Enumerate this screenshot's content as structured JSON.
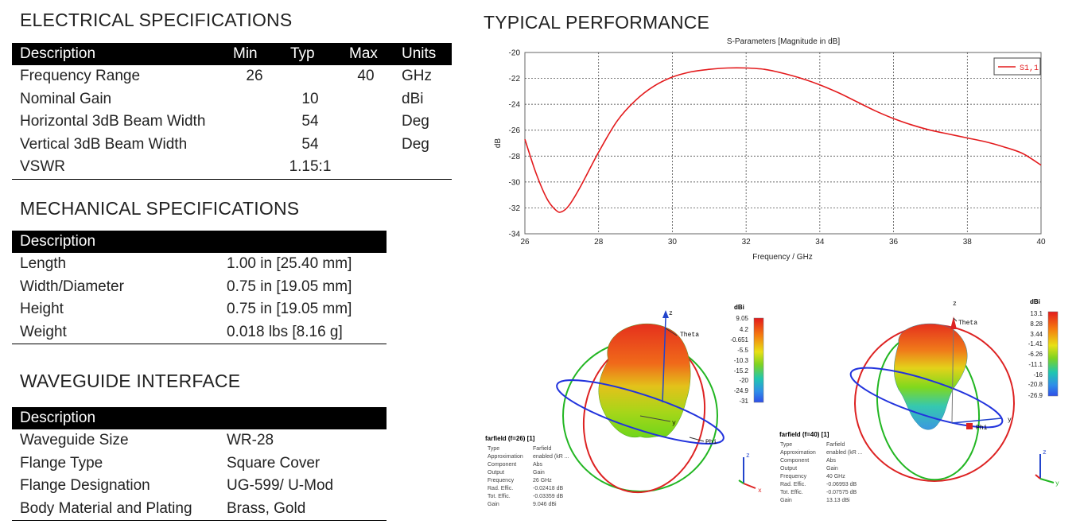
{
  "electrical": {
    "title": "ELECTRICAL SPECIFICATIONS",
    "headers": [
      "Description",
      "Min",
      "Typ",
      "Max",
      "Units"
    ],
    "rows": [
      [
        "Frequency Range",
        "26",
        "",
        "40",
        "GHz"
      ],
      [
        "Nominal Gain",
        "",
        "10",
        "",
        "dBi"
      ],
      [
        "Horizontal 3dB Beam Width",
        "",
        "54",
        "",
        "Deg"
      ],
      [
        "Vertical 3dB Beam Width",
        "",
        "54",
        "",
        "Deg"
      ],
      [
        "VSWR",
        "",
        "1.15:1",
        "",
        ""
      ]
    ]
  },
  "mechanical": {
    "title": "MECHANICAL SPECIFICATIONS",
    "header": "Description",
    "rows": [
      [
        "Length",
        "1.00 in [25.40 mm]"
      ],
      [
        "Width/Diameter",
        "0.75 in [19.05 mm]"
      ],
      [
        "Height",
        "0.75 in [19.05 mm]"
      ],
      [
        "Weight",
        "0.018 lbs [8.16 g]"
      ]
    ]
  },
  "waveguide": {
    "title": "WAVEGUIDE INTERFACE",
    "header": "Description",
    "rows": [
      [
        "Waveguide Size",
        "WR-28"
      ],
      [
        "Flange Type",
        "Square Cover"
      ],
      [
        "Flange Designation",
        "UG-599/ U-Mod"
      ],
      [
        "Body Material and Plating",
        "Brass, Gold"
      ]
    ]
  },
  "performance": {
    "title": "TYPICAL PERFORMANCE"
  },
  "chart_data": {
    "type": "line",
    "title": "S-Parameters [Magnitude in dB]",
    "xlabel": "Frequency / GHz",
    "ylabel": "dB",
    "xlim": [
      26,
      40
    ],
    "ylim": [
      -34,
      -20
    ],
    "xticks": [
      "26",
      "28",
      "30",
      "32",
      "34",
      "36",
      "38",
      "40"
    ],
    "yticks": [
      "-20",
      "-22",
      "-24",
      "-26",
      "-28",
      "-30",
      "-32",
      "-34"
    ],
    "grid": true,
    "legend_position": "top-right",
    "line_color": "#e31a1c",
    "series": [
      {
        "name": "S1,1",
        "x": [
          26,
          26.3,
          26.6,
          26.85,
          27,
          27.2,
          27.5,
          28,
          28.5,
          29,
          29.5,
          30,
          30.5,
          31,
          31.5,
          32,
          32.5,
          33,
          33.5,
          34,
          34.5,
          35,
          35.5,
          36,
          36.5,
          37,
          37.5,
          38,
          38.5,
          39,
          39.5,
          40
        ],
        "y": [
          -26.7,
          -29.3,
          -31.3,
          -32.2,
          -32.3,
          -31.8,
          -30.4,
          -27.7,
          -25.3,
          -23.7,
          -22.6,
          -21.9,
          -21.5,
          -21.3,
          -21.2,
          -21.2,
          -21.3,
          -21.6,
          -22.0,
          -22.5,
          -23.1,
          -23.8,
          -24.5,
          -25.1,
          -25.6,
          -26.0,
          -26.3,
          -26.6,
          -26.9,
          -27.3,
          -27.8,
          -28.7
        ]
      }
    ]
  },
  "farfield1": {
    "z_label": "z",
    "theta_label": "Theta",
    "y_label": "y",
    "phi_label": "Phi",
    "scale_unit": "dBi",
    "scale_ticks": [
      "9.05",
      "4.2",
      "-0.651",
      "-5.5",
      "-10.3",
      "-15.2",
      "-20",
      "-24.9",
      "-31"
    ],
    "info_title": "farfield (f=26) [1]",
    "info": [
      [
        "Type",
        "Farfield"
      ],
      [
        "Approximation",
        "enabled (kR ..."
      ],
      [
        "Component",
        "Abs"
      ],
      [
        "Output",
        "Gain"
      ],
      [
        "Frequency",
        "26 GHz"
      ],
      [
        "Rad. Effic.",
        "-0.02418 dB"
      ],
      [
        "Tot. Effic.",
        "-0.03359 dB"
      ],
      [
        "Gain",
        "9.046 dBi"
      ]
    ]
  },
  "farfield2": {
    "z_label": "z",
    "theta_label": "Theta",
    "y_label": "y",
    "phi_label": "Phi",
    "scale_unit": "dBi",
    "scale_ticks": [
      "13.1",
      "8.28",
      "3.44",
      "-1.41",
      "-6.26",
      "-11.1",
      "-16",
      "-20.8",
      "-26.9"
    ],
    "info_title": "farfield (f=40) [1]",
    "info": [
      [
        "Type",
        "Farfield"
      ],
      [
        "Approximation",
        "enabled (kR ..."
      ],
      [
        "Component",
        "Abs"
      ],
      [
        "Output",
        "Gain"
      ],
      [
        "Frequency",
        "40 GHz"
      ],
      [
        "Rad. Effic.",
        "-0.06993 dB"
      ],
      [
        "Tot. Effic.",
        "-0.07575 dB"
      ],
      [
        "Gain",
        "13.13 dBi"
      ]
    ]
  },
  "triad": {
    "x": "x",
    "y": "y",
    "z": "z"
  }
}
